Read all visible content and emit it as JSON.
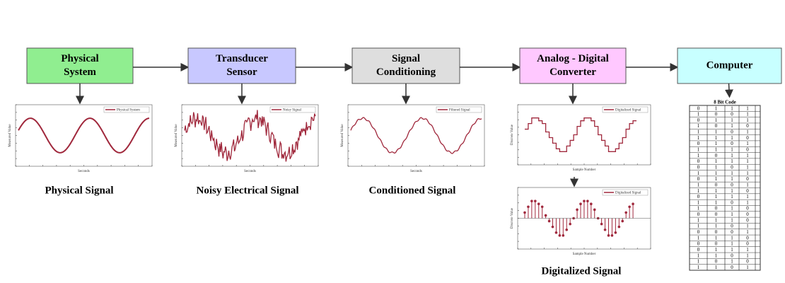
{
  "nodes": [
    {
      "label": [
        "Physical",
        "System"
      ]
    },
    {
      "label": [
        "Transducer",
        "Sensor"
      ]
    },
    {
      "label": [
        "Signal",
        "Conditioning"
      ]
    },
    {
      "label": [
        "Analog - Digital",
        "Converter"
      ]
    },
    {
      "label": [
        "Computer"
      ]
    }
  ],
  "plots": [
    {
      "legend": "Physical System",
      "ylabel": "Measured Value",
      "xlabel": "Seconds"
    },
    {
      "legend": "Noisy Signal",
      "ylabel": "Measured Value",
      "xlabel": "Seconds"
    },
    {
      "legend": "Filtered Signal",
      "ylabel": "Measured Value",
      "xlabel": "Seconds"
    },
    {
      "legend": "Digitalized Signal",
      "ylabel": "Discrete Value",
      "xlabel": "Sample Number"
    },
    {
      "legend": "Digitalized Signal",
      "ylabel": "Discrete Value",
      "xlabel": "Sample Number"
    }
  ],
  "captions": [
    "Physical Signal",
    "Noisy Electrical Signal",
    "Conditioned Signal",
    "Digitalized Signal"
  ],
  "table": {
    "title": "8 Bit Code",
    "rows": [
      [
        "0",
        "1",
        "1",
        "1"
      ],
      [
        "1",
        "0",
        "0",
        "1"
      ],
      [
        "0",
        "1",
        "1",
        "1"
      ],
      [
        "1",
        "0",
        "1",
        "0"
      ],
      [
        "1",
        "1",
        "0",
        "1"
      ],
      [
        "1",
        "1",
        "1",
        "0"
      ],
      [
        "0",
        "1",
        "0",
        "1"
      ],
      [
        "1",
        "1",
        "1",
        "0"
      ],
      [
        "1",
        "0",
        "1",
        "1"
      ],
      [
        "0",
        "1",
        "1",
        "1"
      ],
      [
        "0",
        "1",
        "0",
        "1"
      ],
      [
        "1",
        "1",
        "1",
        "1"
      ],
      [
        "0",
        "1",
        "1",
        "0"
      ],
      [
        "1",
        "0",
        "0",
        "1"
      ],
      [
        "1",
        "1",
        "1",
        "0"
      ],
      [
        "0",
        "1",
        "1",
        "1"
      ],
      [
        "1",
        "1",
        "0",
        "1"
      ],
      [
        "1",
        "0",
        "1",
        "0"
      ],
      [
        "0",
        "0",
        "1",
        "0"
      ],
      [
        "1",
        "1",
        "1",
        "0"
      ],
      [
        "1",
        "1",
        "0",
        "1"
      ],
      [
        "0",
        "0",
        "0",
        "1"
      ],
      [
        "1",
        "1",
        "1",
        "0"
      ],
      [
        "0",
        "0",
        "1",
        "0"
      ],
      [
        "0",
        "1",
        "1",
        "1"
      ],
      [
        "1",
        "1",
        "0",
        "1"
      ],
      [
        "1",
        "0",
        "1",
        "0"
      ],
      [
        "1",
        "1",
        "0",
        "1"
      ]
    ]
  }
}
